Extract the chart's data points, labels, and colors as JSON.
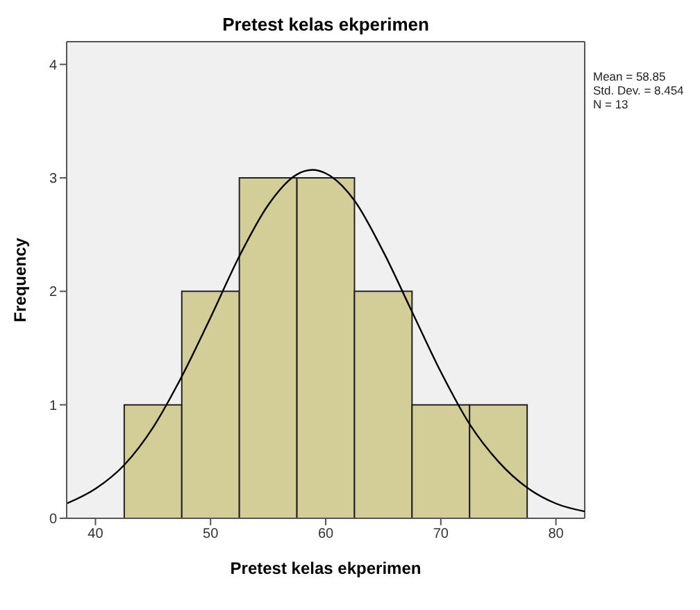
{
  "chart_data": {
    "type": "histogram",
    "title": "Pretest kelas ekperimen",
    "xlabel": "Pretest kelas ekperimen",
    "ylabel": "Frequency",
    "bins": [
      42.5,
      47.5,
      52.5,
      57.5,
      62.5,
      67.5,
      72.5,
      77.5
    ],
    "values": [
      1,
      2,
      3,
      3,
      2,
      1,
      1
    ],
    "color": "#d3ce97",
    "series": [
      {
        "type": "line",
        "color": "#000000",
        "x": [
          37.5,
          40,
          42.5,
          45,
          47.5,
          50,
          52.5,
          55,
          57.5,
          58.85,
          60,
          62.5,
          65,
          67.5,
          70,
          72.5,
          75,
          77.5,
          80,
          82.5
        ],
        "values": [
          0.13,
          0.26,
          0.47,
          0.8,
          1.25,
          1.77,
          2.31,
          2.76,
          3.03,
          3.07,
          3.04,
          2.8,
          2.35,
          1.82,
          1.29,
          0.83,
          0.5,
          0.27,
          0.13,
          0.06
        ]
      }
    ],
    "xlim": [
      37.5,
      82.5
    ],
    "xticks": [
      40,
      50,
      60,
      70,
      80
    ],
    "ylim": [
      0,
      4.2
    ],
    "yticks": [
      0,
      1,
      2,
      3,
      4
    ],
    "annotations": [
      "Mean = 58.85",
      "Std. Dev. = 8.454",
      "N = 13"
    ]
  }
}
